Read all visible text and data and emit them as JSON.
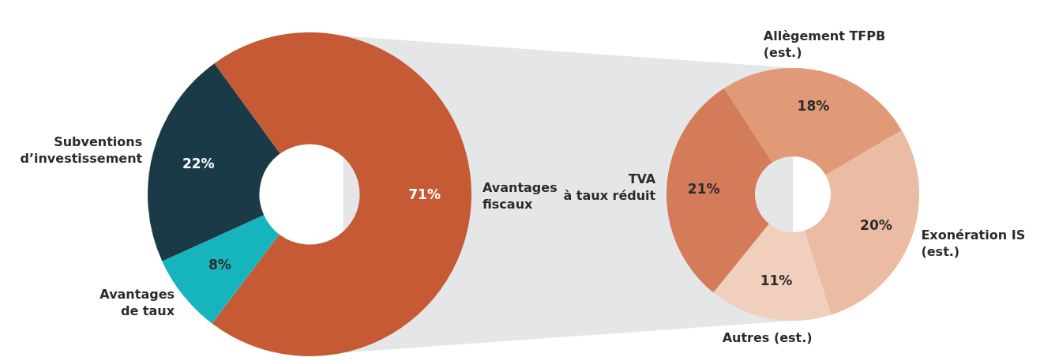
{
  "chart_data": [
    {
      "type": "donut",
      "categories": [
        "Avantages\nfiscaux",
        "Avantages\nde taux",
        "Subventions\nd’investissement"
      ],
      "values": [
        71,
        8,
        22
      ],
      "colors": [
        "#c55a35",
        "#16b5bd",
        "#1a3a48"
      ],
      "value_labels": [
        "71%",
        "8%",
        "22%"
      ]
    },
    {
      "type": "donut",
      "categories": [
        "Allègement TFPB\n(est.)",
        "Exonération IS\n(est.)",
        "Autres (est.)",
        "TVA\nà taux réduit"
      ],
      "values": [
        18,
        20,
        11,
        21
      ],
      "colors": [
        "#e09a78",
        "#ebbba3",
        "#f1cfbd",
        "#d47b59"
      ],
      "value_labels": [
        "18%",
        "20%",
        "11%",
        "21%"
      ]
    }
  ]
}
